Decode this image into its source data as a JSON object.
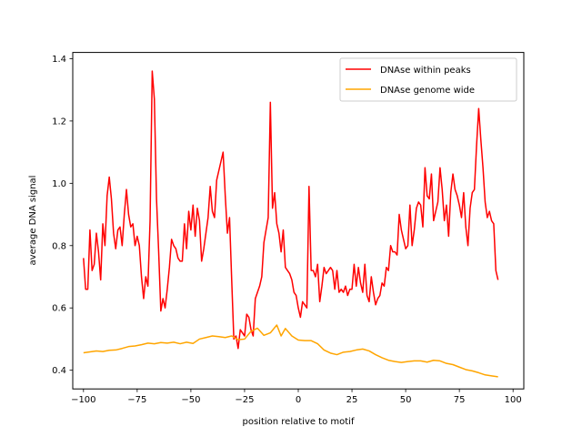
{
  "chart_data": {
    "type": "line",
    "xlabel": "position relative to motif",
    "ylabel": "average DNA signal",
    "xlim": [
      -105,
      105
    ],
    "ylim": [
      0.34,
      1.42
    ],
    "xticks": [
      -100,
      -75,
      -50,
      -25,
      0,
      25,
      50,
      75,
      100
    ],
    "yticks": [
      0.4,
      0.6,
      0.8,
      1.0,
      1.2,
      1.4
    ],
    "xtick_labels": [
      "−100",
      "−75",
      "−50",
      "−25",
      "0",
      "25",
      "50",
      "75",
      "100"
    ],
    "ytick_labels": [
      "0.4",
      "0.6",
      "0.8",
      "1.0",
      "1.2",
      "1.4"
    ],
    "grid": false,
    "legend_position": "top-right",
    "series": [
      {
        "name": "DNAse within peaks",
        "color": "#ff0000",
        "points": [
          [
            -100,
            0.76
          ],
          [
            -99,
            0.66
          ],
          [
            -98,
            0.66
          ],
          [
            -97,
            0.85
          ],
          [
            -96,
            0.72
          ],
          [
            -95,
            0.74
          ],
          [
            -94,
            0.84
          ],
          [
            -93,
            0.78
          ],
          [
            -92,
            0.69
          ],
          [
            -91,
            0.87
          ],
          [
            -90,
            0.8
          ],
          [
            -89,
            0.96
          ],
          [
            -88,
            1.02
          ],
          [
            -87,
            0.95
          ],
          [
            -86,
            0.84
          ],
          [
            -85,
            0.79
          ],
          [
            -84,
            0.85
          ],
          [
            -83,
            0.86
          ],
          [
            -82,
            0.8
          ],
          [
            -81,
            0.9
          ],
          [
            -80,
            0.98
          ],
          [
            -79,
            0.9
          ],
          [
            -78,
            0.86
          ],
          [
            -77,
            0.87
          ],
          [
            -76,
            0.8
          ],
          [
            -75,
            0.83
          ],
          [
            -74,
            0.8
          ],
          [
            -73,
            0.7
          ],
          [
            -72,
            0.63
          ],
          [
            -71,
            0.7
          ],
          [
            -70,
            0.67
          ],
          [
            -69,
            0.88
          ],
          [
            -68,
            1.36
          ],
          [
            -67,
            1.27
          ],
          [
            -66,
            0.95
          ],
          [
            -65,
            0.78
          ],
          [
            -64,
            0.59
          ],
          [
            -63,
            0.63
          ],
          [
            -62,
            0.6
          ],
          [
            -61,
            0.66
          ],
          [
            -60,
            0.73
          ],
          [
            -59,
            0.82
          ],
          [
            -58,
            0.8
          ],
          [
            -57,
            0.79
          ],
          [
            -56,
            0.76
          ],
          [
            -55,
            0.75
          ],
          [
            -54,
            0.75
          ],
          [
            -53,
            0.87
          ],
          [
            -52,
            0.79
          ],
          [
            -51,
            0.91
          ],
          [
            -50,
            0.85
          ],
          [
            -49,
            0.93
          ],
          [
            -48,
            0.83
          ],
          [
            -47,
            0.92
          ],
          [
            -46,
            0.88
          ],
          [
            -45,
            0.75
          ],
          [
            -44,
            0.79
          ],
          [
            -43,
            0.84
          ],
          [
            -42,
            0.89
          ],
          [
            -41,
            0.99
          ],
          [
            -40,
            0.91
          ],
          [
            -39,
            0.89
          ],
          [
            -38,
            1.01
          ],
          [
            -37,
            1.04
          ],
          [
            -36,
            1.07
          ],
          [
            -35,
            1.1
          ],
          [
            -34,
            0.96
          ],
          [
            -33,
            0.84
          ],
          [
            -32,
            0.89
          ],
          [
            -31,
            0.69
          ],
          [
            -30,
            0.5
          ],
          [
            -29,
            0.51
          ],
          [
            -28,
            0.47
          ],
          [
            -27,
            0.53
          ],
          [
            -26,
            0.52
          ],
          [
            -25,
            0.51
          ],
          [
            -24,
            0.58
          ],
          [
            -23,
            0.57
          ],
          [
            -22,
            0.53
          ],
          [
            -21,
            0.51
          ],
          [
            -20,
            0.63
          ],
          [
            -19,
            0.65
          ],
          [
            -18,
            0.67
          ],
          [
            -17,
            0.7
          ],
          [
            -16,
            0.81
          ],
          [
            -15,
            0.85
          ],
          [
            -14,
            0.89
          ],
          [
            -13,
            1.26
          ],
          [
            -12,
            0.92
          ],
          [
            -11,
            0.97
          ],
          [
            -10,
            0.87
          ],
          [
            -9,
            0.84
          ],
          [
            -8,
            0.78
          ],
          [
            -7,
            0.85
          ],
          [
            -6,
            0.73
          ],
          [
            -5,
            0.72
          ],
          [
            -4,
            0.71
          ],
          [
            -3,
            0.69
          ],
          [
            -2,
            0.65
          ],
          [
            -1,
            0.64
          ],
          [
            0,
            0.6
          ],
          [
            1,
            0.57
          ],
          [
            2,
            0.62
          ],
          [
            3,
            0.61
          ],
          [
            4,
            0.6
          ],
          [
            5,
            0.99
          ],
          [
            6,
            0.72
          ],
          [
            7,
            0.72
          ],
          [
            8,
            0.7
          ],
          [
            9,
            0.74
          ],
          [
            10,
            0.62
          ],
          [
            11,
            0.67
          ],
          [
            12,
            0.73
          ],
          [
            13,
            0.71
          ],
          [
            14,
            0.72
          ],
          [
            15,
            0.73
          ],
          [
            16,
            0.72
          ],
          [
            17,
            0.66
          ],
          [
            18,
            0.72
          ],
          [
            19,
            0.65
          ],
          [
            20,
            0.66
          ],
          [
            21,
            0.65
          ],
          [
            22,
            0.67
          ],
          [
            23,
            0.64
          ],
          [
            24,
            0.66
          ],
          [
            25,
            0.66
          ],
          [
            26,
            0.74
          ],
          [
            27,
            0.67
          ],
          [
            28,
            0.73
          ],
          [
            29,
            0.68
          ],
          [
            30,
            0.65
          ],
          [
            31,
            0.74
          ],
          [
            32,
            0.64
          ],
          [
            33,
            0.62
          ],
          [
            34,
            0.7
          ],
          [
            35,
            0.65
          ],
          [
            36,
            0.61
          ],
          [
            37,
            0.63
          ],
          [
            38,
            0.64
          ],
          [
            39,
            0.68
          ],
          [
            40,
            0.67
          ],
          [
            41,
            0.73
          ],
          [
            42,
            0.72
          ],
          [
            43,
            0.8
          ],
          [
            44,
            0.78
          ],
          [
            45,
            0.78
          ],
          [
            46,
            0.77
          ],
          [
            47,
            0.9
          ],
          [
            48,
            0.85
          ],
          [
            49,
            0.82
          ],
          [
            50,
            0.79
          ],
          [
            51,
            0.8
          ],
          [
            52,
            0.93
          ],
          [
            53,
            0.8
          ],
          [
            54,
            0.85
          ],
          [
            55,
            0.92
          ],
          [
            56,
            0.94
          ],
          [
            57,
            0.93
          ],
          [
            58,
            0.86
          ],
          [
            59,
            1.05
          ],
          [
            60,
            0.96
          ],
          [
            61,
            0.95
          ],
          [
            62,
            1.03
          ],
          [
            63,
            0.88
          ],
          [
            64,
            0.91
          ],
          [
            65,
            0.94
          ],
          [
            66,
            1.05
          ],
          [
            67,
            0.98
          ],
          [
            68,
            0.88
          ],
          [
            69,
            0.93
          ],
          [
            70,
            0.83
          ],
          [
            71,
            0.97
          ],
          [
            72,
            1.03
          ],
          [
            73,
            0.98
          ],
          [
            74,
            0.96
          ],
          [
            75,
            0.93
          ],
          [
            76,
            0.89
          ],
          [
            77,
            0.97
          ],
          [
            78,
            0.86
          ],
          [
            79,
            0.8
          ],
          [
            80,
            0.92
          ],
          [
            81,
            0.97
          ],
          [
            82,
            0.98
          ],
          [
            83,
            1.12
          ],
          [
            84,
            1.24
          ],
          [
            85,
            1.14
          ],
          [
            86,
            1.05
          ],
          [
            87,
            0.94
          ],
          [
            88,
            0.89
          ],
          [
            89,
            0.91
          ],
          [
            90,
            0.88
          ],
          [
            91,
            0.87
          ],
          [
            92,
            0.72
          ],
          [
            93,
            0.69
          ]
        ]
      },
      {
        "name": "DNAse genome wide",
        "color": "#ffa500",
        "points": [
          [
            -100,
            0.456
          ],
          [
            -97,
            0.459
          ],
          [
            -94,
            0.462
          ],
          [
            -91,
            0.46
          ],
          [
            -88,
            0.464
          ],
          [
            -85,
            0.465
          ],
          [
            -82,
            0.47
          ],
          [
            -79,
            0.476
          ],
          [
            -76,
            0.478
          ],
          [
            -73,
            0.482
          ],
          [
            -70,
            0.487
          ],
          [
            -67,
            0.485
          ],
          [
            -64,
            0.489
          ],
          [
            -61,
            0.487
          ],
          [
            -58,
            0.49
          ],
          [
            -55,
            0.485
          ],
          [
            -52,
            0.49
          ],
          [
            -49,
            0.486
          ],
          [
            -46,
            0.5
          ],
          [
            -43,
            0.505
          ],
          [
            -40,
            0.51
          ],
          [
            -37,
            0.508
          ],
          [
            -34,
            0.505
          ],
          [
            -31,
            0.51
          ],
          [
            -28,
            0.498
          ],
          [
            -25,
            0.5
          ],
          [
            -22,
            0.525
          ],
          [
            -19,
            0.535
          ],
          [
            -16,
            0.512
          ],
          [
            -13,
            0.52
          ],
          [
            -10,
            0.545
          ],
          [
            -8,
            0.51
          ],
          [
            -6,
            0.534
          ],
          [
            -3,
            0.51
          ],
          [
            0,
            0.497
          ],
          [
            3,
            0.495
          ],
          [
            6,
            0.495
          ],
          [
            9,
            0.485
          ],
          [
            12,
            0.465
          ],
          [
            15,
            0.455
          ],
          [
            18,
            0.45
          ],
          [
            21,
            0.458
          ],
          [
            24,
            0.46
          ],
          [
            27,
            0.465
          ],
          [
            30,
            0.468
          ],
          [
            33,
            0.462
          ],
          [
            36,
            0.45
          ],
          [
            39,
            0.44
          ],
          [
            42,
            0.432
          ],
          [
            45,
            0.428
          ],
          [
            48,
            0.425
          ],
          [
            51,
            0.428
          ],
          [
            54,
            0.43
          ],
          [
            57,
            0.43
          ],
          [
            60,
            0.426
          ],
          [
            63,
            0.432
          ],
          [
            66,
            0.43
          ],
          [
            69,
            0.422
          ],
          [
            72,
            0.418
          ],
          [
            75,
            0.41
          ],
          [
            78,
            0.402
          ],
          [
            81,
            0.398
          ],
          [
            84,
            0.392
          ],
          [
            87,
            0.385
          ],
          [
            90,
            0.382
          ],
          [
            93,
            0.379
          ]
        ]
      }
    ]
  }
}
